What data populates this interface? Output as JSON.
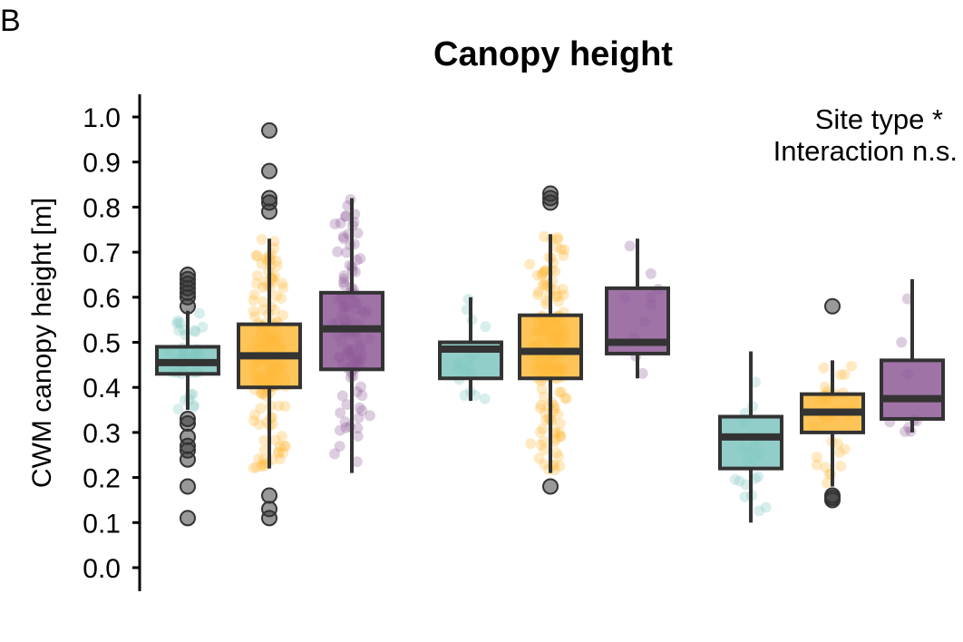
{
  "panel_label": "B",
  "chart_data": {
    "type": "box",
    "title": "Canopy height",
    "ylabel": "CWM canopy height [m]",
    "xlabel": "",
    "ylim": [
      0.0,
      1.05
    ],
    "yticks": [
      "0.0",
      "0.1",
      "0.2",
      "0.3",
      "0.4",
      "0.5",
      "0.6",
      "0.7",
      "0.8",
      "0.9",
      "1.0"
    ],
    "grid": false,
    "annotation": [
      "Site type *",
      "Interaction n.s."
    ],
    "series_colors": [
      "#7fc6bf",
      "#ffba3a",
      "#8f5a98"
    ],
    "boxes": [
      {
        "group": 1,
        "series": 0,
        "q1": 0.43,
        "median": 0.455,
        "q3": 0.49,
        "whisker_low": 0.35,
        "whisker_high": 0.57,
        "outliers": [
          0.65,
          0.64,
          0.63,
          0.62,
          0.61,
          0.6,
          0.58,
          0.33,
          0.32,
          0.29,
          0.27,
          0.26,
          0.24,
          0.18,
          0.11
        ]
      },
      {
        "group": 1,
        "series": 1,
        "q1": 0.4,
        "median": 0.47,
        "q3": 0.54,
        "whisker_low": 0.22,
        "whisker_high": 0.73,
        "outliers": [
          0.97,
          0.88,
          0.82,
          0.81,
          0.79,
          0.16,
          0.13,
          0.11
        ]
      },
      {
        "group": 1,
        "series": 2,
        "q1": 0.44,
        "median": 0.53,
        "q3": 0.61,
        "whisker_low": 0.21,
        "whisker_high": 0.82,
        "outliers": []
      },
      {
        "group": 2,
        "series": 0,
        "q1": 0.42,
        "median": 0.485,
        "q3": 0.5,
        "whisker_low": 0.37,
        "whisker_high": 0.6,
        "outliers": []
      },
      {
        "group": 2,
        "series": 1,
        "q1": 0.42,
        "median": 0.48,
        "q3": 0.56,
        "whisker_low": 0.21,
        "whisker_high": 0.74,
        "outliers": [
          0.83,
          0.82,
          0.81,
          0.18
        ]
      },
      {
        "group": 2,
        "series": 2,
        "q1": 0.475,
        "median": 0.5,
        "q3": 0.62,
        "whisker_low": 0.42,
        "whisker_high": 0.73,
        "outliers": []
      },
      {
        "group": 3,
        "series": 0,
        "q1": 0.22,
        "median": 0.29,
        "q3": 0.335,
        "whisker_low": 0.1,
        "whisker_high": 0.48,
        "outliers": []
      },
      {
        "group": 3,
        "series": 1,
        "q1": 0.3,
        "median": 0.345,
        "q3": 0.385,
        "whisker_low": 0.18,
        "whisker_high": 0.46,
        "outliers": [
          0.58,
          0.16,
          0.155,
          0.15
        ]
      },
      {
        "group": 3,
        "series": 2,
        "q1": 0.33,
        "median": 0.375,
        "q3": 0.46,
        "whisker_low": 0.3,
        "whisker_high": 0.64,
        "outliers": []
      }
    ]
  }
}
